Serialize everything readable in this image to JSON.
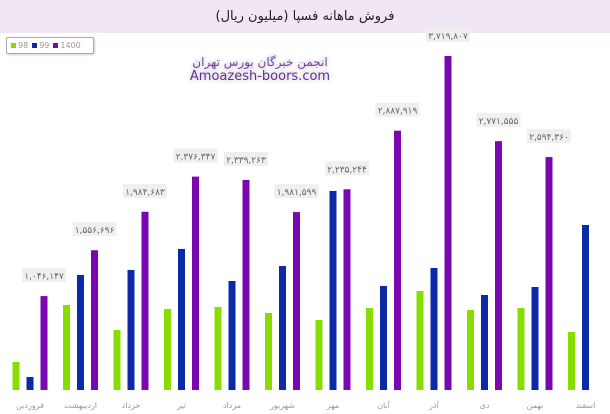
{
  "chart_data": {
    "type": "bar",
    "title": "فروش ماهانه فسپا (میلیون ریال)",
    "categories": [
      "فروردین",
      "اردیبهشت",
      "خرداد",
      "تیر",
      "مرداد",
      "شهریور",
      "مهر",
      "آبان",
      "آذر",
      "دی",
      "بهمن",
      "اسفند"
    ],
    "series": [
      {
        "name": "98",
        "color": "#88dd00",
        "values": [
          312000,
          947000,
          668000,
          902000,
          925000,
          858000,
          780000,
          913000,
          1103000,
          891000,
          913000,
          646000
        ]
      },
      {
        "name": "99",
        "color": "#0a2aa8",
        "values": [
          145000,
          1281000,
          1337000,
          1571000,
          1214000,
          1381000,
          2217000,
          1159000,
          1359000,
          1058000,
          1147000,
          1838000
        ]
      },
      {
        "name": "1400",
        "color": "#7a08b0",
        "values": [
          1046147,
          1556696,
          1984683,
          2376347,
          2339263,
          1981599,
          2235244,
          2887919,
          3719807,
          2771555,
          2594360,
          null
        ]
      }
    ],
    "data_labels_1400": [
      "۱,۰۴۶,۱۴۷",
      "۱,۵۵۶,۶۹۶",
      "۱,۹۸۴,۶۸۳",
      "۲,۳۷۶,۳۴۷",
      "۲,۳۳۹,۲۶۳",
      "۱,۹۸۱,۵۹۹",
      "۲,۲۳۵,۲۴۴",
      "۲,۸۸۷,۹۱۹",
      "۳,۷۱۹,۸۰۷",
      "۲,۷۷۱,۵۵۵",
      "۲,۵۹۴,۳۶۰",
      ""
    ],
    "ylim": [
      0,
      3800000
    ],
    "grid": false,
    "legend": "top-left"
  },
  "watermark": {
    "fa": "انجمن خبرگان بورس تهران",
    "en": "Amoazesh-boors.com"
  }
}
